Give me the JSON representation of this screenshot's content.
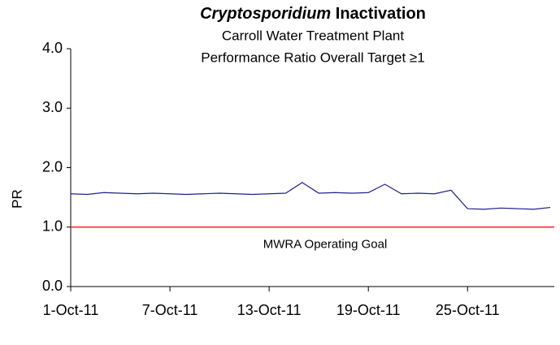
{
  "chart_data": {
    "type": "line",
    "title": {
      "italic": "Cryptosporidium",
      "rest": "Inactivation"
    },
    "subtitle": [
      "Carroll Water Treatment Plant",
      "Performance Ratio Overall Target ≥1"
    ],
    "ylabel": "PR",
    "x": [
      "2011-10-01",
      "2011-10-02",
      "2011-10-03",
      "2011-10-04",
      "2011-10-05",
      "2011-10-06",
      "2011-10-07",
      "2011-10-08",
      "2011-10-09",
      "2011-10-10",
      "2011-10-11",
      "2011-10-12",
      "2011-10-13",
      "2011-10-14",
      "2011-10-15",
      "2011-10-16",
      "2011-10-17",
      "2011-10-18",
      "2011-10-19",
      "2011-10-20",
      "2011-10-21",
      "2011-10-22",
      "2011-10-23",
      "2011-10-24",
      "2011-10-25",
      "2011-10-26",
      "2011-10-27",
      "2011-10-28",
      "2011-10-29",
      "2011-10-30"
    ],
    "series": [
      {
        "name": "PR",
        "color": "#1f1f8f",
        "values": [
          1.56,
          1.55,
          1.58,
          1.57,
          1.56,
          1.57,
          1.56,
          1.55,
          1.56,
          1.57,
          1.56,
          1.55,
          1.56,
          1.57,
          1.75,
          1.57,
          1.58,
          1.57,
          1.58,
          1.72,
          1.56,
          1.57,
          1.56,
          1.62,
          1.31,
          1.3,
          1.32,
          1.31,
          1.3,
          1.33
        ]
      }
    ],
    "xlim": [
      "2011-10-01",
      "2011-10-30"
    ],
    "xticks": [
      {
        "value": "2011-10-01",
        "label": "1-Oct-11"
      },
      {
        "value": "2011-10-07",
        "label": "7-Oct-11"
      },
      {
        "value": "2011-10-13",
        "label": "13-Oct-11"
      },
      {
        "value": "2011-10-19",
        "label": "19-Oct-11"
      },
      {
        "value": "2011-10-25",
        "label": "25-Oct-11"
      }
    ],
    "ylim": [
      0,
      4
    ],
    "yticks": [
      {
        "value": 0,
        "label": "0.0"
      },
      {
        "value": 1,
        "label": "1.0"
      },
      {
        "value": 2,
        "label": "2.0"
      },
      {
        "value": 3,
        "label": "3.0"
      },
      {
        "value": 4,
        "label": "4.0"
      }
    ],
    "reference_line": {
      "value": 1,
      "label": "MWRA Operating Goal",
      "color": "#ff2020"
    },
    "grid": false
  }
}
